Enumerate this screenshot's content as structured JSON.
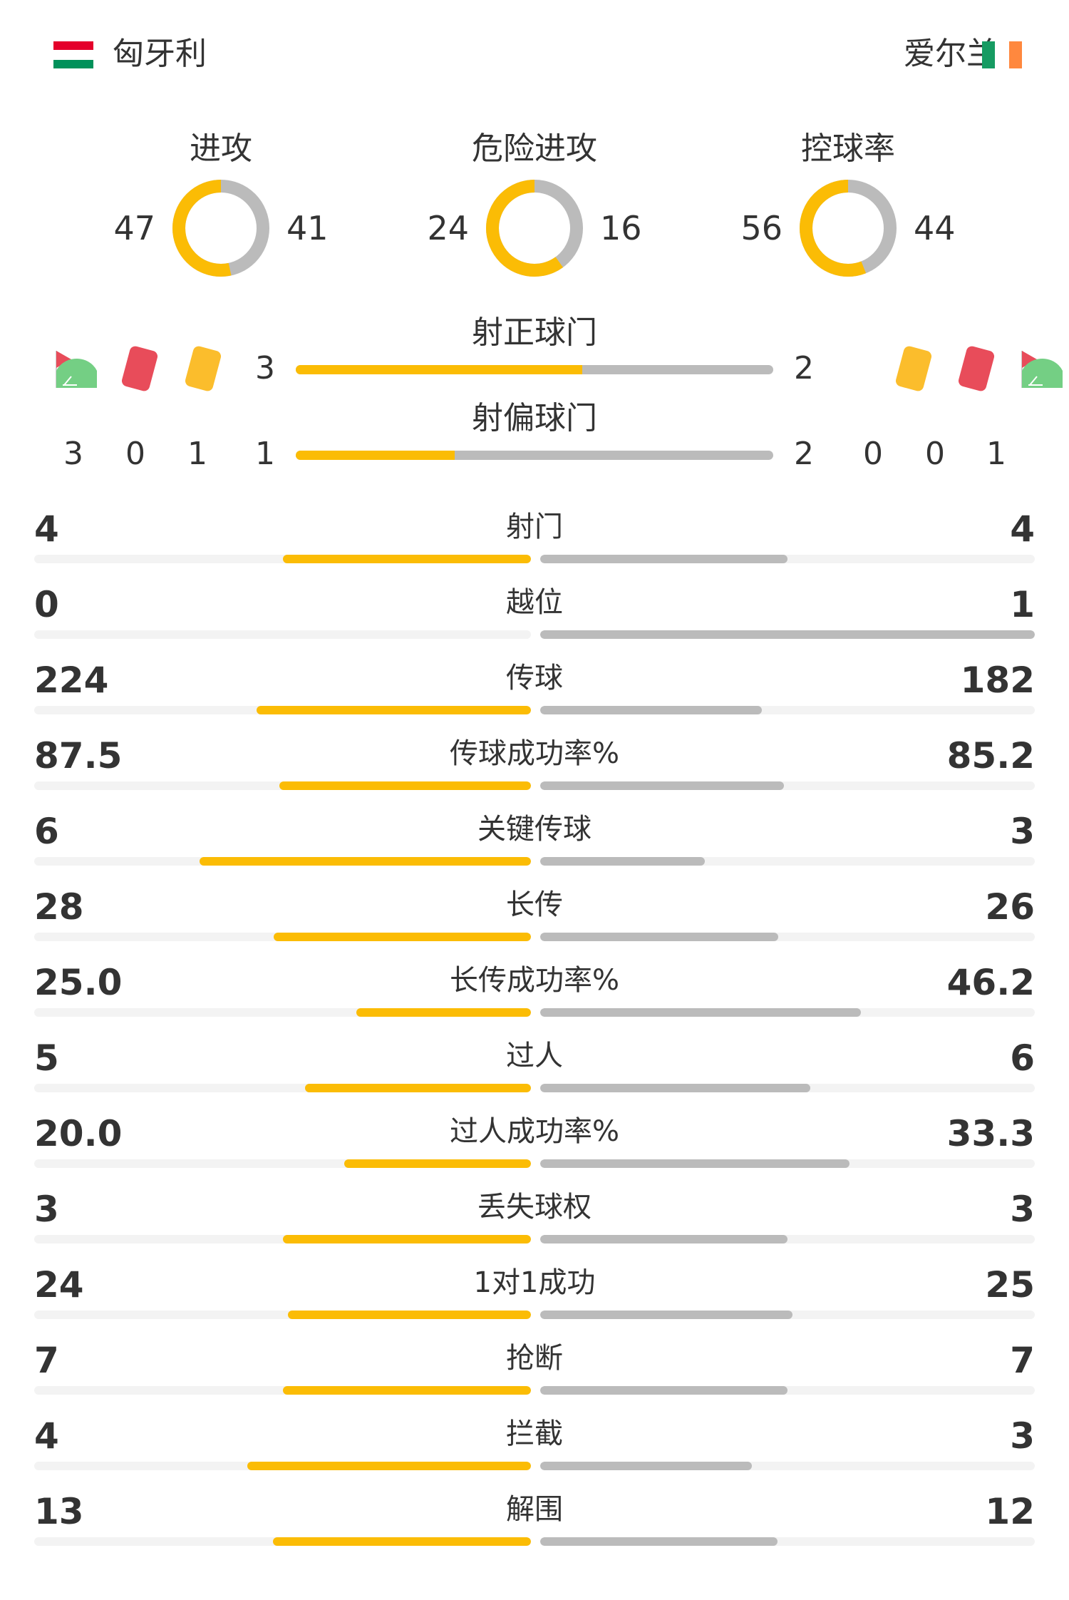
{
  "home": {
    "name": "匈牙利",
    "flag_colors": [
      "#e4002b",
      "#ffffff",
      "#00915a"
    ]
  },
  "away": {
    "name": "爱尔兰",
    "flag_colors": [
      "#169b62",
      "#ffffff",
      "#ff883e"
    ]
  },
  "colors": {
    "home": "#fbbc05",
    "away": "#bbbbbb",
    "track": "#f3f3f3"
  },
  "kpis": [
    {
      "label": "进攻",
      "home": 47,
      "away": 41
    },
    {
      "label": "危险进攻",
      "home": 24,
      "away": 16
    },
    {
      "label": "控球率",
      "home": 56,
      "away": 44
    }
  ],
  "shots_on": {
    "label": "射正球门",
    "home": 3,
    "away": 2
  },
  "shots_off": {
    "label": "射偏球门",
    "home": 1,
    "away": 2
  },
  "discipline": {
    "icons": [
      "corner-flag-icon",
      "red-card-icon",
      "yellow-card-icon"
    ],
    "home": {
      "corners": 3,
      "red": 0,
      "yellow": 1
    },
    "away": {
      "corners": 1,
      "red": 0,
      "yellow": 0
    }
  },
  "stats": [
    {
      "label": "射门",
      "home": "4",
      "away": "4"
    },
    {
      "label": "越位",
      "home": "0",
      "away": "1"
    },
    {
      "label": "传球",
      "home": "224",
      "away": "182"
    },
    {
      "label": "传球成功率%",
      "home": "87.5",
      "away": "85.2"
    },
    {
      "label": "关键传球",
      "home": "6",
      "away": "3"
    },
    {
      "label": "长传",
      "home": "28",
      "away": "26"
    },
    {
      "label": "长传成功率%",
      "home": "25.0",
      "away": "46.2"
    },
    {
      "label": "过人",
      "home": "5",
      "away": "6"
    },
    {
      "label": "过人成功率%",
      "home": "20.0",
      "away": "33.3"
    },
    {
      "label": "丢失球权",
      "home": "3",
      "away": "3"
    },
    {
      "label": "1对1成功",
      "home": "24",
      "away": "25"
    },
    {
      "label": "抢断",
      "home": "7",
      "away": "7"
    },
    {
      "label": "拦截",
      "home": "4",
      "away": "3"
    },
    {
      "label": "解围",
      "home": "13",
      "away": "12"
    }
  ]
}
